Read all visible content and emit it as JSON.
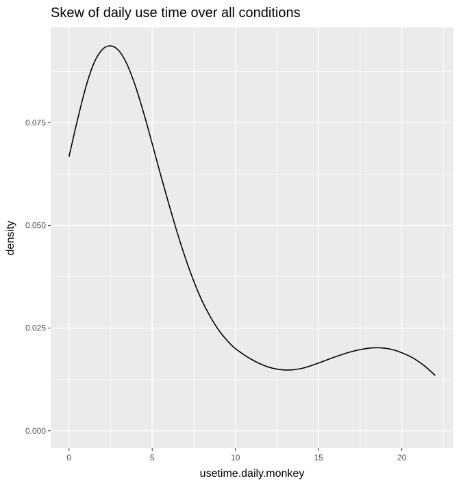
{
  "chart_data": {
    "type": "line",
    "title": "Skew of daily use time over all conditions",
    "xlabel": "usetime.daily.monkey",
    "ylabel": "density",
    "xlim": [
      -1.1,
      23.1
    ],
    "ylim": [
      -0.0042,
      0.0982
    ],
    "x_ticks": [
      0,
      5,
      10,
      15,
      20
    ],
    "x_tick_labels": [
      "0",
      "5",
      "10",
      "15",
      "20"
    ],
    "y_ticks": [
      0,
      0.025,
      0.05,
      0.075
    ],
    "y_tick_labels": [
      "0.000",
      "0.025",
      "0.050",
      "0.075"
    ],
    "grid": true,
    "panel_background": "#ebebeb",
    "grid_color": "#ffffff",
    "line_color": "#000000",
    "series": [
      {
        "x": [
          0,
          0.5,
          1,
          1.5,
          2,
          2.5,
          3,
          3.5,
          4,
          4.5,
          5,
          5.5,
          6,
          6.5,
          7,
          7.5,
          8,
          8.5,
          9,
          9.5,
          10,
          11,
          12,
          13,
          14,
          15,
          16,
          17,
          18,
          18.7,
          19.5,
          20.5,
          21.3,
          22
        ],
        "y": [
          0.0667,
          0.0755,
          0.0835,
          0.0895,
          0.0928,
          0.0937,
          0.0925,
          0.0891,
          0.0838,
          0.0772,
          0.0699,
          0.0624,
          0.0552,
          0.0483,
          0.042,
          0.0364,
          0.0316,
          0.0277,
          0.0245,
          0.022,
          0.02,
          0.0173,
          0.0155,
          0.0148,
          0.0152,
          0.0165,
          0.018,
          0.0193,
          0.0201,
          0.0202,
          0.0197,
          0.0181,
          0.016,
          0.0135
        ]
      }
    ]
  }
}
